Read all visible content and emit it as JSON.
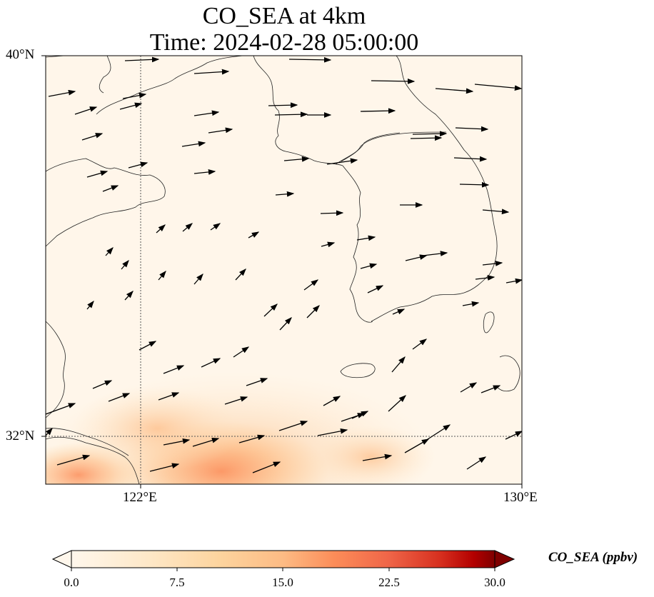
{
  "title": "CO_SEA at 4km",
  "subtitle": "Time: 2024-02-28 05:00:00",
  "lat_ticks": [
    "40°N",
    "32°N"
  ],
  "lon_ticks": [
    "122°E",
    "130°E"
  ],
  "extent": {
    "lon": [
      120,
      130
    ],
    "lat": [
      31,
      40
    ]
  },
  "gridlines": {
    "lon": [
      122
    ],
    "lat": [
      32
    ],
    "style": "dotted"
  },
  "colorbar": {
    "label": "CO_SEA (ppbv)",
    "ticks": [
      "0.0",
      "7.5",
      "15.0",
      "22.5",
      "30.0"
    ],
    "range": [
      0,
      30
    ],
    "colormap": "OrRd",
    "extend": "both"
  },
  "colors": {
    "low": "#fff7ec",
    "mid": "#fc8d59",
    "high": "#7f0000"
  },
  "wind_field": {
    "description": "wind vectors over Yellow Sea / Korea",
    "layer": "4km"
  }
}
